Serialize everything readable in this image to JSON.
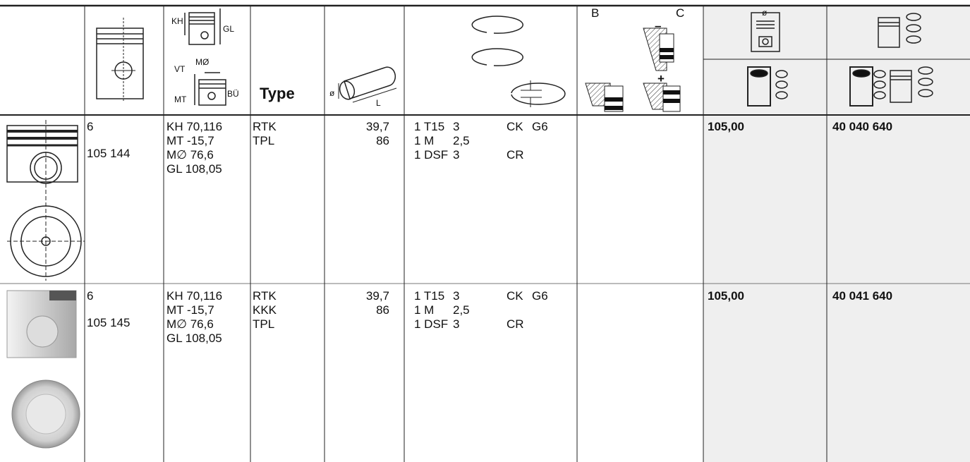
{
  "header": {
    "labels": {
      "kh": "KH",
      "gl": "GL",
      "vt": "VT",
      "m_diameter": "MØ",
      "mt": "MT",
      "bu": "BÜ",
      "type": "Type",
      "pin_diameter": "ø",
      "pin_length": "L",
      "b": "B",
      "c": "C",
      "minus": "–",
      "plus": "+",
      "bore": "ø"
    }
  },
  "rows": [
    {
      "number": "6",
      "code": "105 144",
      "dimensions": [
        "KH 70,116",
        "MT -15,7",
        "M∅ 76,6",
        "GL 108,05"
      ],
      "types": [
        "RTK",
        "TPL"
      ],
      "pin": [
        "39,7",
        "86"
      ],
      "rings": [
        {
          "spec": "1 T15",
          "width": "3",
          "coating": "CK",
          "grade": "G6"
        },
        {
          "spec": "1 M",
          "width": "2,5"
        },
        {
          "spec": "1 DSF",
          "width": "3",
          "coating": "CR"
        }
      ],
      "price": "105,00",
      "kit_number": "40 040 640"
    },
    {
      "number": "6",
      "code": "105 145",
      "dimensions": [
        "KH 70,116",
        "MT -15,7",
        "M∅ 76,6",
        "GL 108,05"
      ],
      "types": [
        "RTK",
        "KKK",
        "TPL"
      ],
      "pin": [
        "39,7",
        "86"
      ],
      "rings": [
        {
          "spec": "1 T15",
          "width": "3",
          "coating": "CK",
          "grade": "G6"
        },
        {
          "spec": "1 M",
          "width": "2,5"
        },
        {
          "spec": "1 DSF",
          "width": "3",
          "coating": "CR"
        }
      ],
      "price": "105,00",
      "kit_number": "40 041 640"
    }
  ]
}
